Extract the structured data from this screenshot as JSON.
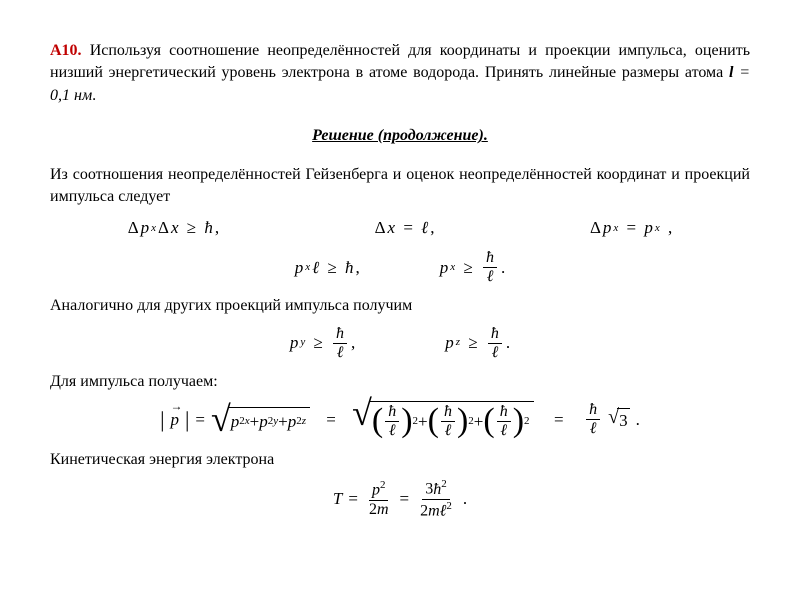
{
  "problem": {
    "code": "А10.",
    "text_part1": "Используя соотношение неопределённостей для координаты и проекции импульса, оценить низший энергетический уровень электрона в атоме водорода. Принять линейные размеры атома ",
    "var_label": "l",
    "value": " = 0,1 нм",
    "period": "."
  },
  "solution_header": "Решение (продолжение).",
  "para1": "Из соотношения неопределённостей Гейзенберга и оценок неопределённостей координат и проекций импульса следует",
  "para2": "Аналогично для других проекций импульса получим",
  "para3": "Для импульса получаем:",
  "para4": "Кинетическая энергия электрона",
  "symbols": {
    "delta": "Δ",
    "p": "p",
    "x": "x",
    "y": "y",
    "z": "z",
    "geq": "≥",
    "eq": "=",
    "hbar": "ħ",
    "ell": "ℓ",
    "comma": ",",
    "period": ".",
    "plus": "+",
    "two": "2",
    "three": "3",
    "m": "m",
    "T": "T",
    "sqrt3": "3"
  },
  "style": {
    "problem_code_color": "#c00000",
    "text_color": "#000000",
    "background": "#ffffff",
    "base_fontsize": 16,
    "eq_fontsize": 17,
    "sub_fontsize": 11,
    "font_family": "Times New Roman, serif"
  }
}
